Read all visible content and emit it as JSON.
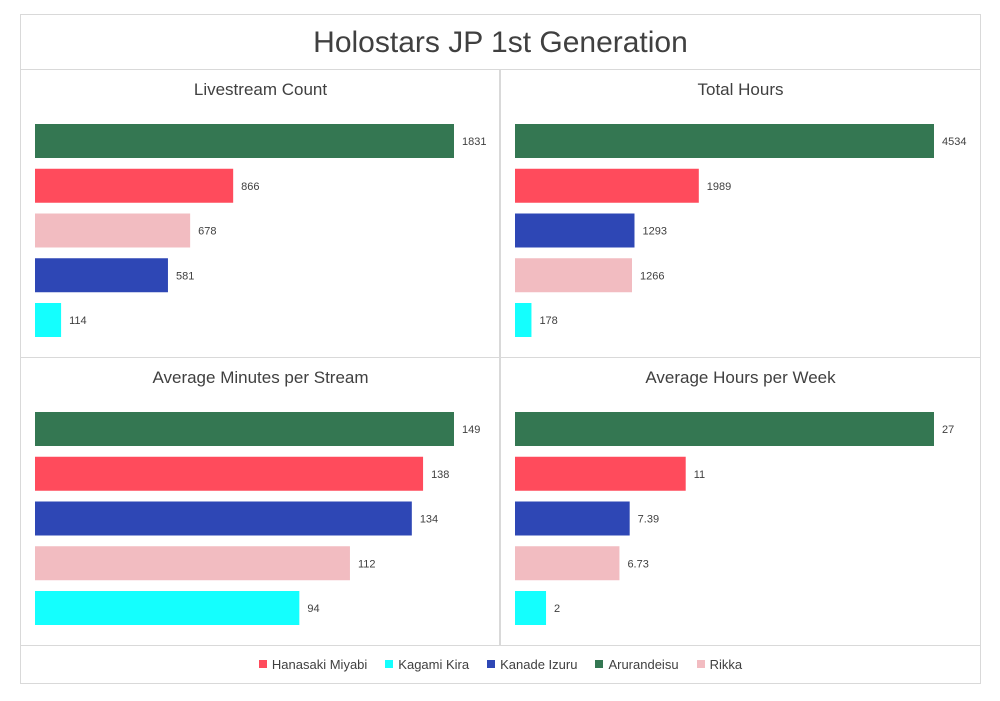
{
  "title": "Holostars JP 1st Generation",
  "colors": {
    "Hanasaki Miyabi": "#ff4b5c",
    "Kagami Kira": "#14fffe",
    "Kanade Izuru": "#2e47b5",
    "Arurandeisu": "#347752",
    "Rikka": "#f2bcc1"
  },
  "legend": [
    "Hanasaki Miyabi",
    "Kagami Kira",
    "Kanade Izuru",
    "Arurandeisu",
    "Rikka"
  ],
  "chart_data": [
    {
      "type": "bar",
      "orientation": "horizontal",
      "title": "Livestream Count",
      "categories": [
        "Arurandeisu",
        "Hanasaki Miyabi",
        "Rikka",
        "Kanade Izuru",
        "Kagami Kira"
      ],
      "values": [
        1831,
        866,
        678,
        581,
        114
      ],
      "labels": [
        "1831",
        "866",
        "678",
        "581",
        "114"
      ],
      "xlim": [
        0,
        1831
      ]
    },
    {
      "type": "bar",
      "orientation": "horizontal",
      "title": "Total Hours",
      "categories": [
        "Arurandeisu",
        "Hanasaki Miyabi",
        "Kanade Izuru",
        "Rikka",
        "Kagami Kira"
      ],
      "values": [
        4534,
        1989,
        1293,
        1266,
        178
      ],
      "labels": [
        "4534",
        "1989",
        "1293",
        "1266",
        "178"
      ],
      "xlim": [
        0,
        4534
      ]
    },
    {
      "type": "bar",
      "orientation": "horizontal",
      "title": "Average Minutes per Stream",
      "categories": [
        "Arurandeisu",
        "Hanasaki Miyabi",
        "Kanade Izuru",
        "Rikka",
        "Kagami Kira"
      ],
      "values": [
        149,
        138,
        134,
        112,
        94
      ],
      "labels": [
        "149",
        "138",
        "134",
        "112",
        "94"
      ],
      "xlim": [
        0,
        149
      ]
    },
    {
      "type": "bar",
      "orientation": "horizontal",
      "title": "Average Hours per Week",
      "categories": [
        "Arurandeisu",
        "Hanasaki Miyabi",
        "Kanade Izuru",
        "Rikka",
        "Kagami Kira"
      ],
      "values": [
        27,
        11,
        7.39,
        6.73,
        2
      ],
      "labels": [
        "27",
        "11",
        "7.39",
        "6.73",
        "2"
      ],
      "xlim": [
        0,
        27
      ]
    }
  ]
}
